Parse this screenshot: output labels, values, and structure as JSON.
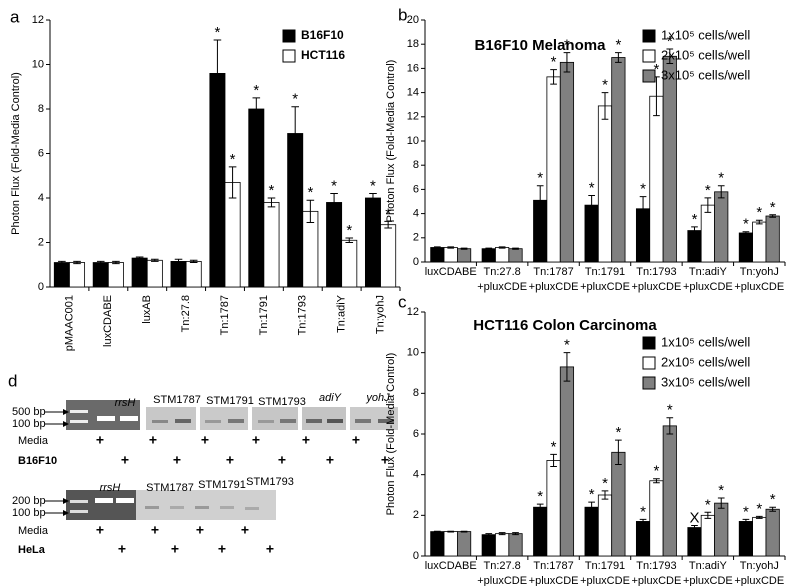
{
  "chart_data": [
    {
      "type": "bar",
      "panel": "a",
      "ylabel": "Photon Flux (Fold-Media Control)",
      "categories": [
        [
          "pMAAC001"
        ],
        [
          "luxCDABE"
        ],
        [
          "luxAB"
        ],
        [
          "Tn:27.8"
        ],
        [
          "Tn:1787"
        ],
        [
          "Tn:1791"
        ],
        [
          "Tn:1793"
        ],
        [
          "Tn:adiY"
        ],
        [
          "Tn:yohJ"
        ]
      ],
      "ylim": [
        0,
        12
      ],
      "yticks": [
        0,
        2,
        4,
        6,
        8,
        10,
        12
      ],
      "series": [
        {
          "name": "B16F10",
          "color": "#000000",
          "values": [
            1.1,
            1.1,
            1.3,
            1.15,
            9.6,
            8.0,
            6.9,
            3.8,
            4.0
          ],
          "errors": [
            0.05,
            0.05,
            0.05,
            0.1,
            1.5,
            0.5,
            1.2,
            0.4,
            0.2
          ],
          "marks": [
            null,
            null,
            null,
            null,
            "*",
            "*",
            "*",
            "*",
            "*"
          ]
        },
        {
          "name": "HCT116",
          "color": "#ffffff",
          "values": [
            1.1,
            1.1,
            1.2,
            1.15,
            4.7,
            3.8,
            3.4,
            2.1,
            2.8
          ],
          "errors": [
            0.05,
            0.05,
            0.05,
            0.05,
            0.7,
            0.2,
            0.5,
            0.1,
            0.15
          ],
          "marks": [
            null,
            null,
            null,
            null,
            "*",
            "*",
            "*",
            "*",
            "*"
          ]
        }
      ]
    },
    {
      "type": "bar",
      "panel": "b",
      "title": "B16F10 Melanoma",
      "ylabel": "Photon Flux (Fold-Media Control)",
      "categories": [
        [
          "luxCDABE"
        ],
        [
          "Tn:27.8",
          "+pluxCDE"
        ],
        [
          "Tn:1787",
          "+pluxCDE"
        ],
        [
          "Tn:1791",
          "+pluxCDE"
        ],
        [
          "Tn:1793",
          "+pluxCDE"
        ],
        [
          "Tn:adiY",
          "+pluxCDE"
        ],
        [
          "Tn:yohJ",
          "+pluxCDE"
        ]
      ],
      "ylim": [
        0,
        20
      ],
      "yticks": [
        0,
        2,
        4,
        6,
        8,
        10,
        12,
        14,
        16,
        18,
        20
      ],
      "series": [
        {
          "name": "1x10⁵ cells/well",
          "color": "#000000",
          "values": [
            1.2,
            1.1,
            5.1,
            4.7,
            4.4,
            2.6,
            2.4
          ],
          "errors": [
            0.05,
            0.05,
            1.2,
            0.8,
            1.0,
            0.3,
            0.1
          ],
          "marks": [
            null,
            null,
            "*",
            "*",
            "*",
            "*",
            "*"
          ]
        },
        {
          "name": "2x10⁵ cells/well",
          "color": "#ffffff",
          "values": [
            1.2,
            1.2,
            15.3,
            12.9,
            13.7,
            4.7,
            3.3
          ],
          "errors": [
            0.05,
            0.05,
            0.6,
            1.1,
            1.6,
            0.6,
            0.15
          ],
          "marks": [
            null,
            null,
            "*",
            "*",
            "*",
            "*",
            "*"
          ]
        },
        {
          "name": "3x10⁵ cells/well",
          "color": "#808080",
          "values": [
            1.1,
            1.1,
            16.5,
            16.9,
            17.0,
            5.8,
            3.8
          ],
          "errors": [
            0.05,
            0.05,
            0.8,
            0.4,
            0.6,
            0.5,
            0.1
          ],
          "marks": [
            null,
            null,
            "*",
            "*",
            "*",
            "*",
            "*"
          ]
        }
      ]
    },
    {
      "type": "bar",
      "panel": "c",
      "title": "HCT116 Colon Carcinoma",
      "ylabel": "Photon Flux (Fold-Media Control)",
      "categories": [
        [
          "luxCDABE"
        ],
        [
          "Tn:27.8",
          "+pluxCDE"
        ],
        [
          "Tn:1787",
          "+pluxCDE"
        ],
        [
          "Tn:1791",
          "+pluxCDE"
        ],
        [
          "Tn:1793",
          "+pluxCDE"
        ],
        [
          "Tn:adiY",
          "+pluxCDE"
        ],
        [
          "Tn:yohJ",
          "+pluxCDE"
        ]
      ],
      "ylim": [
        0,
        12
      ],
      "yticks": [
        0,
        2,
        4,
        6,
        8,
        10,
        12
      ],
      "series": [
        {
          "name": "1x10⁵ cells/well",
          "color": "#000000",
          "values": [
            1.2,
            1.05,
            2.4,
            2.4,
            1.7,
            1.4,
            1.7
          ],
          "errors": [
            0.02,
            0.05,
            0.15,
            0.25,
            0.1,
            0.1,
            0.1
          ],
          "marks": [
            null,
            null,
            "*",
            "*",
            "*",
            "X",
            "*"
          ]
        },
        {
          "name": "2x10⁵ cells/well",
          "color": "#ffffff",
          "values": [
            1.2,
            1.1,
            4.7,
            3.0,
            3.7,
            2.0,
            1.9
          ],
          "errors": [
            0.02,
            0.05,
            0.3,
            0.2,
            0.1,
            0.15,
            0.05
          ],
          "marks": [
            null,
            null,
            "*",
            "*",
            "*",
            "*",
            "*"
          ]
        },
        {
          "name": "3x10⁵ cells/well",
          "color": "#808080",
          "values": [
            1.2,
            1.1,
            9.3,
            5.1,
            6.4,
            2.6,
            2.3
          ],
          "errors": [
            0.02,
            0.05,
            0.7,
            0.6,
            0.4,
            0.25,
            0.1
          ],
          "marks": [
            null,
            null,
            "*",
            "*",
            "*",
            "*",
            "*"
          ]
        }
      ]
    }
  ],
  "gel_panel": {
    "panel": "d",
    "gels": [
      {
        "size_markers": [
          "500 bp",
          "100 bp"
        ],
        "lanes": [
          "rrsH",
          "STM1787",
          "STM1791",
          "STM1793",
          "adiY",
          "yohJ"
        ],
        "rows": [
          {
            "label": "Media",
            "marks": [
              "+",
              "+",
              "+",
              "+",
              "+",
              "+"
            ]
          },
          {
            "label": "B16F10",
            "marks": [
              "+",
              "+",
              "+",
              "+",
              "+",
              "+"
            ]
          }
        ]
      },
      {
        "size_markers": [
          "200 bp",
          "100 bp"
        ],
        "lanes": [
          "rrsH",
          "STM1787",
          "STM1791",
          "STM1793"
        ],
        "rows": [
          {
            "label": "Media",
            "marks": [
              "+",
              "+",
              "+",
              "+"
            ]
          },
          {
            "label": "HeLa",
            "marks": [
              "+",
              "+",
              "+",
              "+"
            ]
          }
        ]
      }
    ]
  }
}
